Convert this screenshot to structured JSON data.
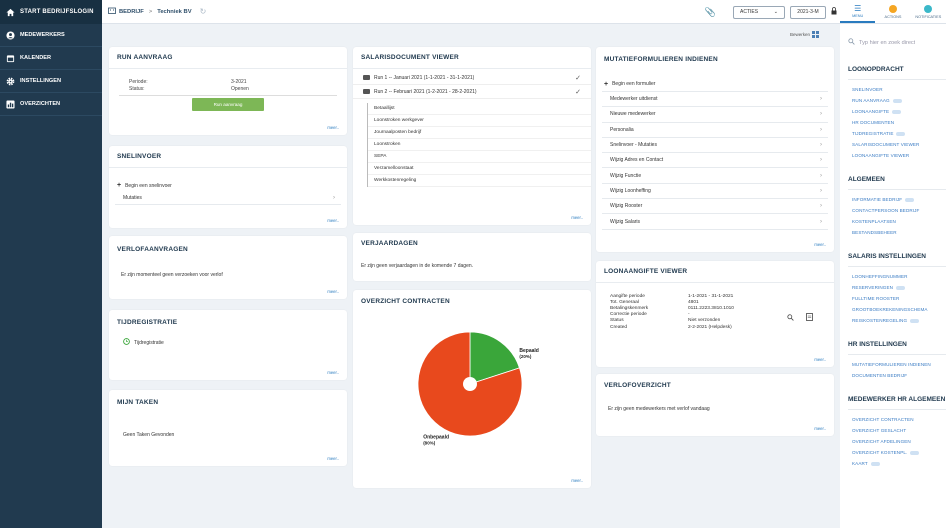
{
  "sidebar": {
    "header": "START BEDRIJFSLOGIN",
    "items": [
      {
        "label": "MEDEWERKERS",
        "icon": "user-icon"
      },
      {
        "label": "KALENDER",
        "icon": "calendar-icon"
      },
      {
        "label": "INSTELLINGEN",
        "icon": "gear-icon"
      },
      {
        "label": "OVERZICHTEN",
        "icon": "chart-icon"
      }
    ]
  },
  "topbar": {
    "crumb_root": "BEDRIJF",
    "crumb_company": "Techniek BV",
    "acties_label": "ACTIES",
    "period_label": "2021-3-M"
  },
  "rightnav": {
    "tabs": [
      "MENU",
      "ACTIONS",
      "NOTIFICATIES"
    ],
    "search_placeholder": "Typ hier en zoek direct"
  },
  "bewerken_label": "Bewerken",
  "meer": "meer..",
  "run_aanvraag": {
    "title": "RUN AANVRAAG",
    "periode_label": "Periode:",
    "periode_value": "3-2021",
    "status_label": "Status:",
    "status_value": "Openen",
    "button_label": "Run aanvraag"
  },
  "snelinvoer": {
    "title": "SNELINVOER",
    "begin": "Begin een snelinvoer",
    "items": [
      "Mutaties"
    ]
  },
  "verlofaanvragen": {
    "title": "VERLOFAANVRAGEN",
    "message": "Er zijn momenteel geen verzoeken voor verlof"
  },
  "tijdregistratie": {
    "title": "TIJDREGISTRATIE",
    "item": "Tijdregistratie"
  },
  "mijn_taken": {
    "title": "MIJN TAKEN",
    "message": "Geen Taken Gevonden"
  },
  "salarisdocument": {
    "title": "SALARISDOCUMENT VIEWER",
    "runs": [
      "Run 1 -- Januari 2021 (1-1-2021 - 31-1-2021)",
      "Run 2 -- Februari 2021 (1-2-2021 - 28-2-2021)"
    ],
    "docs": [
      "Betaallijst",
      "Loonstroken werkgever",
      "Journaalposten bedrijf",
      "Loonstroken",
      "SEPA",
      "Verzamelloonstaat",
      "Werkkostenregeling"
    ]
  },
  "verjaardagen": {
    "title": "VERJAARDAGEN",
    "message": "Er zijn geen verjaardagen in de komende 7 dagen."
  },
  "contracten": {
    "title": "OVERZICHT CONTRACTEN"
  },
  "chart_data": {
    "type": "pie",
    "title": "",
    "slices": [
      {
        "label": "Bepaald",
        "pct_label": "(20%)",
        "value": 20,
        "color": "#3aa63a"
      },
      {
        "label": "Onbepaald",
        "pct_label": "(80%)",
        "value": 80,
        "color": "#e8491d"
      }
    ]
  },
  "mutatie": {
    "title": "MUTATIEFORMULIEREN INDIENEN",
    "begin": "Begin een formulier",
    "items": [
      "Medewerker uitdienst",
      "Nieuwe medewerker",
      "Personalia",
      "Snelinvoer - Mutaties",
      "Wijzig Adres en Contact",
      "Wijzig Functie",
      "Wijzig Loonheffing",
      "Wijzig Rooster",
      "Wijzig Salaris"
    ]
  },
  "loonaangifte": {
    "title": "LOONAANGIFTE VIEWER",
    "rows": [
      {
        "k": "Aangifte periode",
        "v": "1-1-2021 - 31-1-2021"
      },
      {
        "k": "Tot. Generaal",
        "v": "4801"
      },
      {
        "k": "Betalingskenmerk",
        "v": "0111.2223.3810.1010"
      },
      {
        "k": "Correctie periode",
        "v": "-"
      },
      {
        "k": "Status",
        "v": "Niet verzonden"
      },
      {
        "k": "Created",
        "v": "2-2-2021 (Helpdesk)"
      }
    ]
  },
  "verlofoverzicht": {
    "title": "VERLOFOVERZICHT",
    "message": "Er zijn geen medewerkers met verlof vandaag"
  },
  "menu": {
    "sections": [
      {
        "title": "LOONOPDRACHT",
        "links": [
          {
            "label": "SNELINVOER",
            "pill": false
          },
          {
            "label": "RUN AANVRAAG",
            "pill": true
          },
          {
            "label": "LOONAANGIFTE",
            "pill": true
          },
          {
            "label": "HR DOCUMENTEN",
            "pill": false
          },
          {
            "label": "TIJDREGISTRATIE",
            "pill": true
          },
          {
            "label": "SALARISDOCUMENT VIEWER",
            "pill": false
          },
          {
            "label": "LOONAANGIFTE VIEWER",
            "pill": false
          }
        ]
      },
      {
        "title": "ALGEMEEN",
        "links": [
          {
            "label": "INFORMATIE BEDRIJF",
            "pill": true
          },
          {
            "label": "CONTACTPERSOON BEDRIJF",
            "pill": false
          },
          {
            "label": "KOSTENPLAATSEN",
            "pill": false
          },
          {
            "label": "BESTANDSBEHEER",
            "pill": false
          }
        ]
      },
      {
        "title": "SALARIS INSTELLINGEN",
        "links": [
          {
            "label": "LOONHEFFINGNUMMER",
            "pill": false
          },
          {
            "label": "RESERVERINGEN",
            "pill": true
          },
          {
            "label": "FULLTIME ROOSTER",
            "pill": false
          },
          {
            "label": "GROOTBOEKREKENINGSCHEMA",
            "pill": false
          },
          {
            "label": "REISKOSTENREGELING",
            "pill": true
          }
        ]
      },
      {
        "title": "HR INSTELLINGEN",
        "links": [
          {
            "label": "MUTATIEFORMULIEREN INDIENEN",
            "pill": false
          },
          {
            "label": "DOCUMENTEN BEDRIJF",
            "pill": false
          }
        ]
      },
      {
        "title": "MEDEWERKER HR ALGEMEEN",
        "links": [
          {
            "label": "OVERZICHT CONTRACTEN",
            "pill": false
          },
          {
            "label": "OVERZICHT GESLACHT",
            "pill": false
          },
          {
            "label": "OVERZICHT AFDELINGEN",
            "pill": false
          },
          {
            "label": "OVERZICHT KOSTENPL.",
            "pill": true
          },
          {
            "label": "KAART",
            "pill": true
          }
        ]
      }
    ]
  }
}
